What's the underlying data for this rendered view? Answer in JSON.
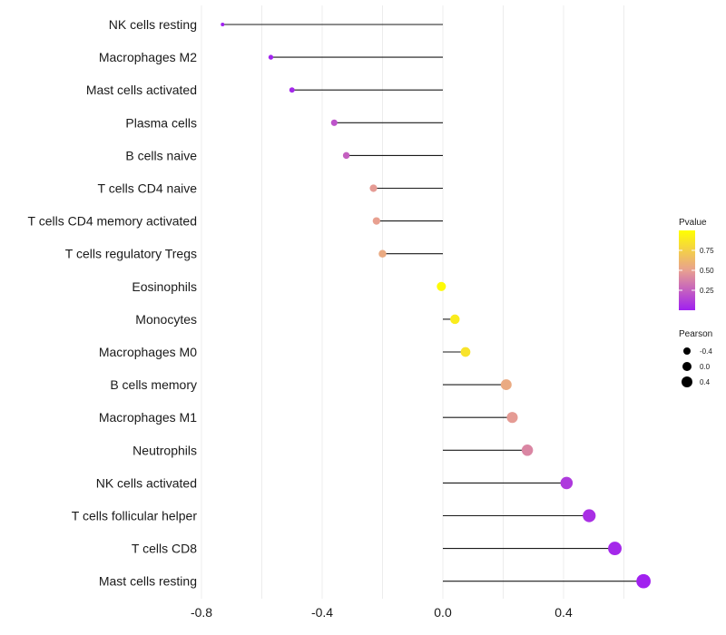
{
  "chart_data": {
    "type": "lollipop",
    "title": "",
    "xlabel": "",
    "ylabel": "",
    "xlim": [
      -0.8,
      0.68
    ],
    "xticks": [
      -0.8,
      -0.4,
      0.0,
      0.4
    ],
    "xtick_labels": [
      "-0.8",
      "-0.4",
      "0.0",
      "0.4"
    ],
    "grid": true,
    "categories": [
      "NK cells resting",
      "Macrophages M2",
      "Mast cells activated",
      "Plasma cells",
      "B cells naive",
      "T cells CD4 naive",
      "T cells CD4 memory activated",
      "T cells regulatory  Tregs ",
      "Eosinophils",
      "Monocytes",
      "Macrophages M0",
      "B cells memory",
      "Macrophages M1",
      "Neutrophils",
      "NK cells activated",
      "T cells follicular helper",
      "T cells CD8",
      "Mast cells resting"
    ],
    "pearson": [
      -0.73,
      -0.57,
      -0.5,
      -0.36,
      -0.32,
      -0.23,
      -0.22,
      -0.2,
      -0.005,
      0.04,
      0.075,
      0.21,
      0.23,
      0.28,
      0.41,
      0.485,
      0.57,
      0.665
    ],
    "pvalue": [
      0.001,
      0.01,
      0.03,
      0.2,
      0.25,
      0.48,
      0.5,
      0.55,
      0.98,
      0.9,
      0.85,
      0.55,
      0.48,
      0.4,
      0.1,
      0.06,
      0.03,
      0.005
    ],
    "legend": {
      "color_title": "Pvalue",
      "color_ticks": [
        0.25,
        0.5,
        0.75
      ],
      "color_tick_labels": [
        "0.25",
        "0.50",
        "0.75"
      ],
      "color_low": "#a020f0",
      "color_mid": "#e8a090",
      "color_high": "#ffff00",
      "size_title": "Pearson",
      "size_labels": [
        "-0.4",
        "0.0",
        "0.4"
      ],
      "placement": "right"
    },
    "colors": {
      "stem": "#1a1a1a",
      "grid": "#ececec",
      "text": "#1a1a1a"
    }
  }
}
